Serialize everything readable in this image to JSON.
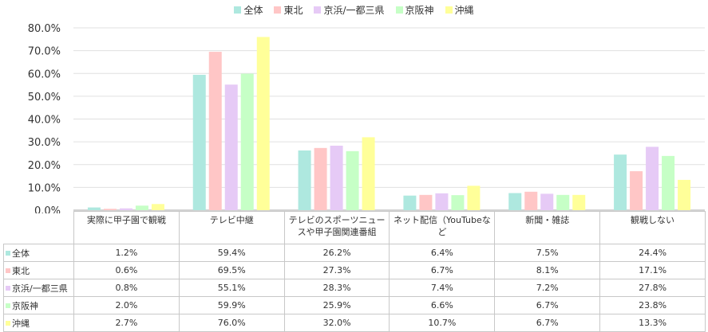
{
  "chart_data": {
    "type": "bar",
    "title": "",
    "xlabel": "",
    "ylabel": "",
    "ylim": [
      0,
      80
    ],
    "yticks": [
      "0.0%",
      "10.0%",
      "20.0%",
      "30.0%",
      "40.0%",
      "50.0%",
      "60.0%",
      "70.0%",
      "80.0%"
    ],
    "grid": true,
    "legend_position": "top-center",
    "categories": [
      "実際に甲子園で観戦",
      "テレビ中継",
      "テレビのスポーツニュースや甲子園関連番組",
      "ネット配信（YouTubeなど",
      "新聞・雑誌",
      "観戦しない"
    ],
    "series": [
      {
        "name": "全体",
        "color": "#aee8df",
        "values": [
          1.2,
          59.4,
          26.2,
          6.4,
          7.5,
          24.4
        ],
        "labels": [
          "1.2%",
          "59.4%",
          "26.2%",
          "6.4%",
          "7.5%",
          "24.4%"
        ]
      },
      {
        "name": "東北",
        "color": "#ffc6c6",
        "values": [
          0.6,
          69.5,
          27.3,
          6.7,
          8.1,
          17.1
        ],
        "labels": [
          "0.6%",
          "69.5%",
          "27.3%",
          "6.7%",
          "8.1%",
          "17.1%"
        ]
      },
      {
        "name": "京浜/一都三県",
        "color": "#e6caf6",
        "values": [
          0.8,
          55.1,
          28.3,
          7.4,
          7.2,
          27.8
        ],
        "labels": [
          "0.8%",
          "55.1%",
          "28.3%",
          "7.4%",
          "7.2%",
          "27.8%"
        ]
      },
      {
        "name": "京阪神",
        "color": "#c6ffc6",
        "values": [
          2.0,
          59.9,
          25.9,
          6.6,
          6.7,
          23.8
        ],
        "labels": [
          "2.0%",
          "59.9%",
          "25.9%",
          "6.6%",
          "6.7%",
          "23.8%"
        ]
      },
      {
        "name": "沖縄",
        "color": "#ffff99",
        "values": [
          2.7,
          76.0,
          32.0,
          10.7,
          6.7,
          13.3
        ],
        "labels": [
          "2.7%",
          "76.0%",
          "32.0%",
          "10.7%",
          "6.7%",
          "13.3%"
        ]
      }
    ]
  }
}
